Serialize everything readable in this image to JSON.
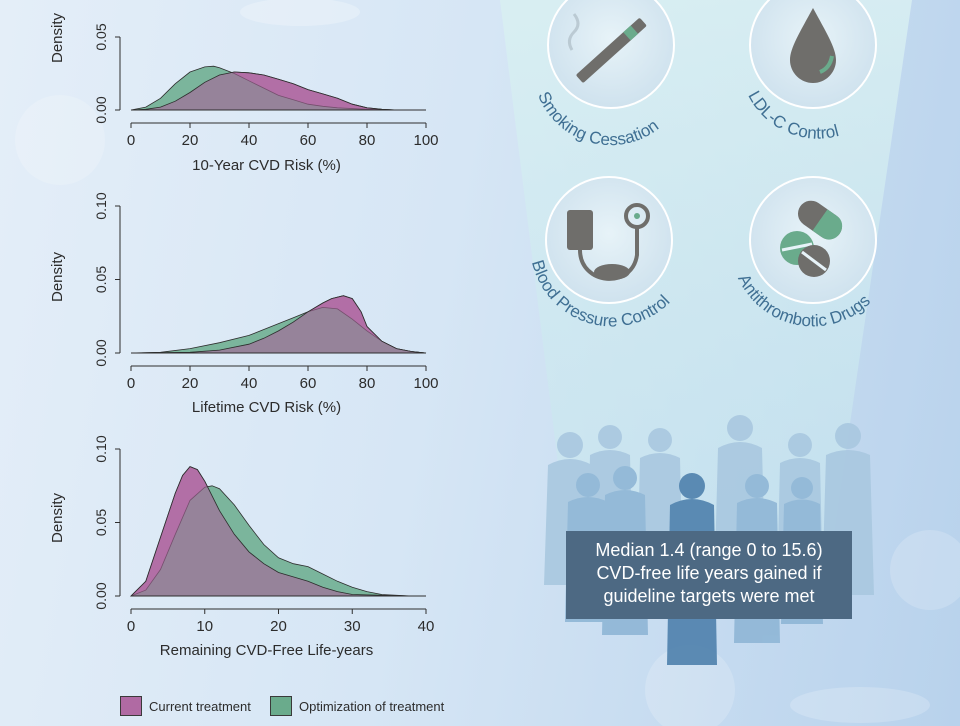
{
  "chart_data": [
    {
      "type": "area",
      "ylabel": "Density",
      "xlabel": "10-Year CVD Risk (%)",
      "x_ticks": [
        0,
        20,
        40,
        60,
        80,
        100
      ],
      "y_ticks": [
        "0.00",
        "0.05"
      ],
      "xlim": [
        0,
        100
      ],
      "ylim": [
        0,
        0.06
      ],
      "series": [
        {
          "name": "Current treatment",
          "color": "#b06aa3",
          "x": [
            0,
            5,
            10,
            15,
            20,
            25,
            30,
            35,
            40,
            45,
            50,
            55,
            60,
            65,
            70,
            75,
            80,
            85,
            90,
            100
          ],
          "y": [
            0,
            0.0005,
            0.002,
            0.006,
            0.012,
            0.019,
            0.024,
            0.026,
            0.0255,
            0.024,
            0.021,
            0.018,
            0.014,
            0.011,
            0.008,
            0.004,
            0.0015,
            0.0005,
            0,
            0
          ]
        },
        {
          "name": "Optimization of treatment",
          "color": "#6aab8c",
          "x": [
            0,
            5,
            10,
            15,
            20,
            25,
            28,
            30,
            35,
            40,
            45,
            50,
            55,
            60,
            65,
            70,
            80,
            90,
            100
          ],
          "y": [
            0,
            0.002,
            0.008,
            0.018,
            0.026,
            0.0295,
            0.03,
            0.029,
            0.025,
            0.02,
            0.015,
            0.01,
            0.007,
            0.004,
            0.0025,
            0.0015,
            0.0005,
            0,
            0
          ]
        }
      ]
    },
    {
      "type": "area",
      "ylabel": "Density",
      "xlabel": "Lifetime CVD Risk (%)",
      "x_ticks": [
        0,
        20,
        40,
        60,
        80,
        100
      ],
      "y_ticks": [
        "0.00",
        "0.05",
        "0.10"
      ],
      "xlim": [
        0,
        100
      ],
      "ylim": [
        0,
        0.11
      ],
      "series": [
        {
          "name": "Current treatment",
          "color": "#b06aa3",
          "x": [
            0,
            20,
            30,
            40,
            45,
            50,
            55,
            60,
            65,
            68,
            72,
            75,
            78,
            80,
            85,
            90,
            95,
            100
          ],
          "y": [
            0,
            0.0005,
            0.002,
            0.006,
            0.01,
            0.015,
            0.021,
            0.028,
            0.034,
            0.037,
            0.039,
            0.037,
            0.028,
            0.018,
            0.008,
            0.003,
            0.001,
            0
          ]
        },
        {
          "name": "Optimization of treatment",
          "color": "#6aab8c",
          "x": [
            0,
            10,
            20,
            30,
            40,
            45,
            50,
            55,
            60,
            65,
            70,
            75,
            80,
            85,
            90,
            95,
            100
          ],
          "y": [
            0,
            0.0005,
            0.003,
            0.007,
            0.012,
            0.016,
            0.02,
            0.024,
            0.028,
            0.031,
            0.03,
            0.023,
            0.015,
            0.008,
            0.003,
            0.001,
            0
          ]
        }
      ]
    },
    {
      "type": "area",
      "ylabel": "Density",
      "xlabel": "Remaining CVD-Free Life-years",
      "x_ticks": [
        0,
        10,
        20,
        30,
        40
      ],
      "y_ticks": [
        "0.00",
        "0.05",
        "0.10"
      ],
      "xlim": [
        0,
        40
      ],
      "ylim": [
        0,
        0.11
      ],
      "series": [
        {
          "name": "Current treatment",
          "color": "#b06aa3",
          "x": [
            0,
            2,
            4,
            6,
            7,
            8,
            9,
            10,
            12,
            14,
            16,
            18,
            20,
            22,
            24,
            26,
            28,
            30,
            38
          ],
          "y": [
            0,
            0.01,
            0.04,
            0.07,
            0.082,
            0.088,
            0.086,
            0.078,
            0.058,
            0.042,
            0.03,
            0.022,
            0.016,
            0.013,
            0.01,
            0.006,
            0.003,
            0.001,
            0
          ]
        },
        {
          "name": "Optimization of treatment",
          "color": "#6aab8c",
          "x": [
            0,
            2,
            4,
            6,
            8,
            10,
            11,
            12,
            14,
            16,
            18,
            20,
            22,
            24,
            26,
            28,
            30,
            32,
            34,
            38
          ],
          "y": [
            0,
            0.004,
            0.018,
            0.042,
            0.065,
            0.074,
            0.075,
            0.073,
            0.062,
            0.048,
            0.035,
            0.026,
            0.022,
            0.02,
            0.015,
            0.01,
            0.006,
            0.003,
            0.001,
            0
          ]
        }
      ]
    }
  ],
  "legend": {
    "current": {
      "label": "Current treatment",
      "color": "#b06aa3"
    },
    "optimized": {
      "label": "Optimization of treatment",
      "color": "#6aab8c"
    }
  },
  "interventions": [
    {
      "label": "Smoking Cessation",
      "icon": "cigarette-icon"
    },
    {
      "label": "LDL-C  Control",
      "icon": "blood-drop-icon"
    },
    {
      "label": "Blood Pressure Control",
      "icon": "blood-pressure-cuff-icon"
    },
    {
      "label": "Antithrombotic Drugs",
      "icon": "pills-icon"
    }
  ],
  "callout": {
    "lines": [
      "Median 1.4 (range 0 to 15.6)",
      "CVD-free life years gained if",
      "guideline targets were met"
    ]
  }
}
